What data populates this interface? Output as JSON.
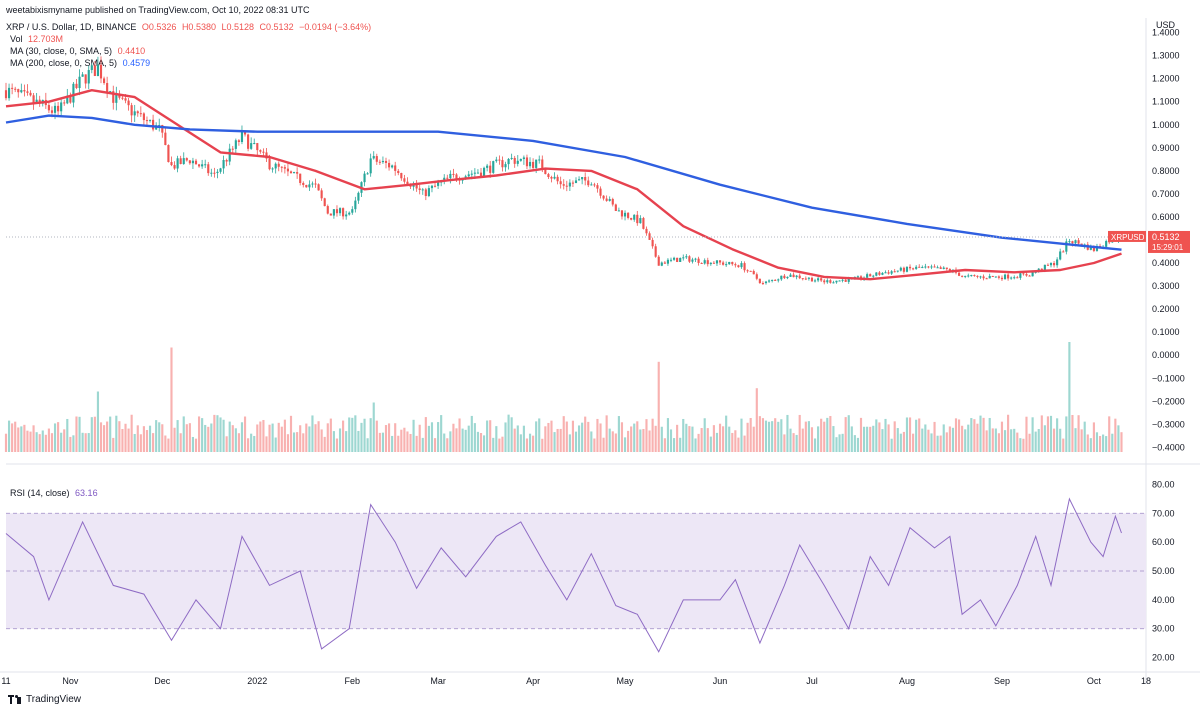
{
  "published_by": "weetabixismyname published on TradingView.com, Oct 10, 2022 08:31 UTC",
  "header": {
    "symbol": "XRP / U.S. Dollar, 1D, BINANCE",
    "ohlc": {
      "o": "O0.5326",
      "h": "H0.5380",
      "l": "L0.5128",
      "c": "C0.5132",
      "chg": "−0.0194 (−3.64%)"
    },
    "vol_label": "Vol",
    "vol_value": "12.703M",
    "ma30_label": "MA (30, close, 0, SMA, 5)",
    "ma30_value": "0.4410",
    "ma200_label": "MA (200, close, 0, SMA, 5)",
    "ma200_value": "0.4579",
    "rsi_label": "RSI (14, close)",
    "rsi_value": "63.16"
  },
  "currency": "USD",
  "price_tag": {
    "symbol": "XRPUSD",
    "price": "0.5132",
    "countdown": "15:29:01"
  },
  "footer": {
    "brand": "TradingView"
  },
  "colors": {
    "up": "#26a69a",
    "down": "#ef5350",
    "ma30": "#e6424f",
    "ma200": "#2f5fe0",
    "rsi": "#8e6bc4",
    "rsi_band": "#ede7f6",
    "grid": "#f0f3fa"
  },
  "chart_data": {
    "type": "line",
    "price_axis": {
      "ylim": [
        -0.42,
        1.42
      ],
      "ticks": [
        "1.4000",
        "1.3000",
        "1.2000",
        "1.1000",
        "1.0000",
        "0.9000",
        "0.8000",
        "0.7000",
        "0.6000",
        "0.5000",
        "0.4000",
        "0.3000",
        "0.2000",
        "0.1000",
        "0.0000",
        "−0.1000",
        "−0.2000",
        "−0.3000",
        "−0.4000"
      ]
    },
    "rsi_axis": {
      "ylim": [
        15,
        85
      ],
      "ticks": [
        "80.00",
        "70.00",
        "60.00",
        "50.00",
        "40.00",
        "30.00",
        "20.00"
      ],
      "band": [
        30,
        70
      ]
    },
    "time_axis": {
      "xlim": [
        "2021-10-11",
        "2022-10-18"
      ],
      "ticks": [
        {
          "date": "2021-10-11",
          "label": "11"
        },
        {
          "date": "2021-11-01",
          "label": "Nov"
        },
        {
          "date": "2021-12-01",
          "label": "Dec"
        },
        {
          "date": "2022-01-01",
          "label": "2022"
        },
        {
          "date": "2022-02-01",
          "label": "Feb"
        },
        {
          "date": "2022-03-01",
          "label": "Mar"
        },
        {
          "date": "2022-04-01",
          "label": "Apr"
        },
        {
          "date": "2022-05-01",
          "label": "May"
        },
        {
          "date": "2022-06-01",
          "label": "Jun"
        },
        {
          "date": "2022-07-01",
          "label": "Jul"
        },
        {
          "date": "2022-08-01",
          "label": "Aug"
        },
        {
          "date": "2022-09-01",
          "label": "Sep"
        },
        {
          "date": "2022-10-01",
          "label": "Oct"
        },
        {
          "date": "2022-10-18",
          "label": "18"
        }
      ]
    },
    "close_path": [
      {
        "x": "2021-10-11",
        "y": 1.15
      },
      {
        "x": "2021-10-20",
        "y": 1.1
      },
      {
        "x": "2021-10-28",
        "y": 1.05
      },
      {
        "x": "2021-11-05",
        "y": 1.2
      },
      {
        "x": "2021-11-10",
        "y": 1.25
      },
      {
        "x": "2021-11-15",
        "y": 1.12
      },
      {
        "x": "2021-11-22",
        "y": 1.05
      },
      {
        "x": "2021-11-30",
        "y": 0.98
      },
      {
        "x": "2021-12-04",
        "y": 0.82
      },
      {
        "x": "2021-12-10",
        "y": 0.85
      },
      {
        "x": "2021-12-18",
        "y": 0.78
      },
      {
        "x": "2021-12-27",
        "y": 0.95
      },
      {
        "x": "2022-01-05",
        "y": 0.83
      },
      {
        "x": "2022-01-12",
        "y": 0.78
      },
      {
        "x": "2022-01-20",
        "y": 0.73
      },
      {
        "x": "2022-01-24",
        "y": 0.62
      },
      {
        "x": "2022-02-01",
        "y": 0.62
      },
      {
        "x": "2022-02-07",
        "y": 0.85
      },
      {
        "x": "2022-02-14",
        "y": 0.82
      },
      {
        "x": "2022-02-24",
        "y": 0.7
      },
      {
        "x": "2022-03-05",
        "y": 0.77
      },
      {
        "x": "2022-03-15",
        "y": 0.8
      },
      {
        "x": "2022-03-25",
        "y": 0.85
      },
      {
        "x": "2022-04-03",
        "y": 0.83
      },
      {
        "x": "2022-04-10",
        "y": 0.74
      },
      {
        "x": "2022-04-20",
        "y": 0.76
      },
      {
        "x": "2022-04-28",
        "y": 0.63
      },
      {
        "x": "2022-05-06",
        "y": 0.58
      },
      {
        "x": "2022-05-12",
        "y": 0.4
      },
      {
        "x": "2022-05-20",
        "y": 0.42
      },
      {
        "x": "2022-06-01",
        "y": 0.4
      },
      {
        "x": "2022-06-08",
        "y": 0.39
      },
      {
        "x": "2022-06-15",
        "y": 0.31
      },
      {
        "x": "2022-06-23",
        "y": 0.35
      },
      {
        "x": "2022-07-05",
        "y": 0.32
      },
      {
        "x": "2022-07-15",
        "y": 0.33
      },
      {
        "x": "2022-07-25",
        "y": 0.36
      },
      {
        "x": "2022-08-05",
        "y": 0.38
      },
      {
        "x": "2022-08-15",
        "y": 0.37
      },
      {
        "x": "2022-08-20",
        "y": 0.34
      },
      {
        "x": "2022-09-01",
        "y": 0.34
      },
      {
        "x": "2022-09-10",
        "y": 0.35
      },
      {
        "x": "2022-09-18",
        "y": 0.4
      },
      {
        "x": "2022-09-23",
        "y": 0.5
      },
      {
        "x": "2022-10-01",
        "y": 0.46
      },
      {
        "x": "2022-10-06",
        "y": 0.5
      },
      {
        "x": "2022-10-10",
        "y": 0.513
      }
    ],
    "volume_spikes": [
      {
        "x": "2021-12-04",
        "level": 0.95
      },
      {
        "x": "2022-05-12",
        "level": 0.82
      },
      {
        "x": "2022-09-23",
        "level": 1.0
      },
      {
        "x": "2022-06-13",
        "level": 0.58
      },
      {
        "x": "2021-11-10",
        "level": 0.55
      },
      {
        "x": "2022-02-08",
        "level": 0.45
      }
    ],
    "series": [
      {
        "name": "MA (30, close, 0, SMA, 5)",
        "points": [
          {
            "x": "2021-10-11",
            "y": 1.08
          },
          {
            "x": "2021-10-25",
            "y": 1.1
          },
          {
            "x": "2021-11-08",
            "y": 1.15
          },
          {
            "x": "2021-11-22",
            "y": 1.12
          },
          {
            "x": "2021-12-06",
            "y": 1.0
          },
          {
            "x": "2021-12-20",
            "y": 0.88
          },
          {
            "x": "2022-01-05",
            "y": 0.86
          },
          {
            "x": "2022-01-20",
            "y": 0.8
          },
          {
            "x": "2022-02-05",
            "y": 0.72
          },
          {
            "x": "2022-02-20",
            "y": 0.74
          },
          {
            "x": "2022-03-05",
            "y": 0.76
          },
          {
            "x": "2022-03-20",
            "y": 0.78
          },
          {
            "x": "2022-04-05",
            "y": 0.81
          },
          {
            "x": "2022-04-20",
            "y": 0.8
          },
          {
            "x": "2022-05-05",
            "y": 0.72
          },
          {
            "x": "2022-05-20",
            "y": 0.56
          },
          {
            "x": "2022-06-05",
            "y": 0.46
          },
          {
            "x": "2022-06-20",
            "y": 0.38
          },
          {
            "x": "2022-07-05",
            "y": 0.34
          },
          {
            "x": "2022-07-20",
            "y": 0.33
          },
          {
            "x": "2022-08-05",
            "y": 0.35
          },
          {
            "x": "2022-08-20",
            "y": 0.37
          },
          {
            "x": "2022-09-05",
            "y": 0.36
          },
          {
            "x": "2022-09-20",
            "y": 0.37
          },
          {
            "x": "2022-10-01",
            "y": 0.4
          },
          {
            "x": "2022-10-10",
            "y": 0.441
          }
        ]
      },
      {
        "name": "MA (200, close, 0, SMA, 5)",
        "points": [
          {
            "x": "2021-10-11",
            "y": 1.01
          },
          {
            "x": "2021-10-25",
            "y": 1.04
          },
          {
            "x": "2021-11-08",
            "y": 1.03
          },
          {
            "x": "2021-11-22",
            "y": 1.0
          },
          {
            "x": "2021-12-10",
            "y": 0.98
          },
          {
            "x": "2022-01-01",
            "y": 0.97
          },
          {
            "x": "2022-02-01",
            "y": 0.97
          },
          {
            "x": "2022-03-01",
            "y": 0.97
          },
          {
            "x": "2022-04-01",
            "y": 0.93
          },
          {
            "x": "2022-05-01",
            "y": 0.86
          },
          {
            "x": "2022-06-01",
            "y": 0.74
          },
          {
            "x": "2022-07-01",
            "y": 0.64
          },
          {
            "x": "2022-08-01",
            "y": 0.57
          },
          {
            "x": "2022-09-01",
            "y": 0.51
          },
          {
            "x": "2022-10-01",
            "y": 0.47
          },
          {
            "x": "2022-10-10",
            "y": 0.458
          }
        ]
      }
    ],
    "rsi_path": [
      {
        "x": "2021-10-11",
        "y": 63
      },
      {
        "x": "2021-10-20",
        "y": 55
      },
      {
        "x": "2021-10-25",
        "y": 40
      },
      {
        "x": "2021-11-05",
        "y": 67
      },
      {
        "x": "2021-11-15",
        "y": 45
      },
      {
        "x": "2021-11-25",
        "y": 42
      },
      {
        "x": "2021-12-04",
        "y": 26
      },
      {
        "x": "2021-12-12",
        "y": 40
      },
      {
        "x": "2021-12-20",
        "y": 30
      },
      {
        "x": "2021-12-27",
        "y": 62
      },
      {
        "x": "2022-01-05",
        "y": 45
      },
      {
        "x": "2022-01-15",
        "y": 50
      },
      {
        "x": "2022-01-22",
        "y": 23
      },
      {
        "x": "2022-01-31",
        "y": 30
      },
      {
        "x": "2022-02-07",
        "y": 73
      },
      {
        "x": "2022-02-15",
        "y": 60
      },
      {
        "x": "2022-02-22",
        "y": 44
      },
      {
        "x": "2022-03-02",
        "y": 58
      },
      {
        "x": "2022-03-10",
        "y": 48
      },
      {
        "x": "2022-03-20",
        "y": 62
      },
      {
        "x": "2022-03-28",
        "y": 67
      },
      {
        "x": "2022-04-05",
        "y": 52
      },
      {
        "x": "2022-04-12",
        "y": 40
      },
      {
        "x": "2022-04-20",
        "y": 56
      },
      {
        "x": "2022-04-28",
        "y": 38
      },
      {
        "x": "2022-05-05",
        "y": 35
      },
      {
        "x": "2022-05-12",
        "y": 22
      },
      {
        "x": "2022-05-20",
        "y": 40
      },
      {
        "x": "2022-06-01",
        "y": 40
      },
      {
        "x": "2022-06-06",
        "y": 47
      },
      {
        "x": "2022-06-14",
        "y": 25
      },
      {
        "x": "2022-06-22",
        "y": 45
      },
      {
        "x": "2022-06-27",
        "y": 59
      },
      {
        "x": "2022-07-05",
        "y": 45
      },
      {
        "x": "2022-07-13",
        "y": 30
      },
      {
        "x": "2022-07-20",
        "y": 55
      },
      {
        "x": "2022-07-26",
        "y": 45
      },
      {
        "x": "2022-08-02",
        "y": 65
      },
      {
        "x": "2022-08-10",
        "y": 58
      },
      {
        "x": "2022-08-15",
        "y": 62
      },
      {
        "x": "2022-08-19",
        "y": 35
      },
      {
        "x": "2022-08-25",
        "y": 40
      },
      {
        "x": "2022-08-30",
        "y": 31
      },
      {
        "x": "2022-09-06",
        "y": 45
      },
      {
        "x": "2022-09-12",
        "y": 62
      },
      {
        "x": "2022-09-17",
        "y": 45
      },
      {
        "x": "2022-09-23",
        "y": 75
      },
      {
        "x": "2022-09-30",
        "y": 60
      },
      {
        "x": "2022-10-04",
        "y": 55
      },
      {
        "x": "2022-10-08",
        "y": 69
      },
      {
        "x": "2022-10-10",
        "y": 63.16
      }
    ]
  }
}
